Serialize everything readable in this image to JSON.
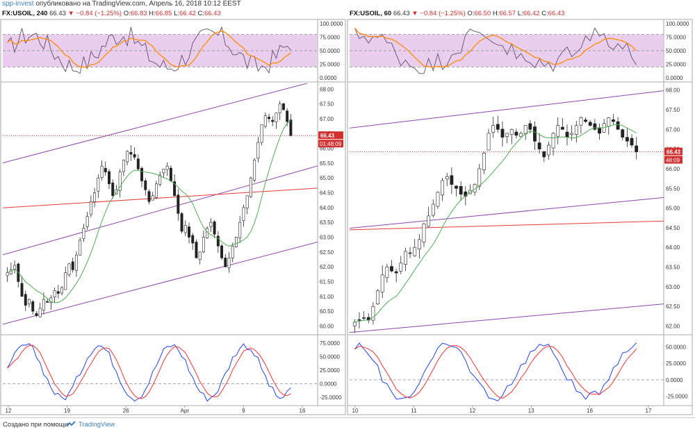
{
  "header": {
    "brand": "spp-invest",
    "published": "опубликовано на TradingView.com, Апрель 16, 2018 10:12 EEST"
  },
  "panels": [
    {
      "symbol": "FX:USOIL, 240",
      "last": "66.43",
      "change": "▼ −0.84 (−1.25%)",
      "o_label": "O:",
      "o": "66.83",
      "h_label": "H:",
      "h": "66.85",
      "l_label": "L:",
      "l": "66.42",
      "c_label": "C:",
      "c": "66.43",
      "price_badge": "66.43",
      "timer_badge": "01:48:09",
      "rsi_ticks": [
        "100.0000",
        "75.0000",
        "50.0000",
        "25.0000",
        "0.0000"
      ],
      "price_ticks": [
        "68.00",
        "67.50",
        "67.00",
        "66.50",
        "66.00",
        "65.50",
        "65.00",
        "64.50",
        "64.00",
        "63.50",
        "63.00",
        "62.50",
        "62.00",
        "61.50",
        "61.00",
        "60.50",
        "60.00"
      ],
      "stoch_ticks": [
        "75.0000",
        "50.0000",
        "25.0000",
        "0.0000",
        "-25.0000"
      ],
      "x_ticks": [
        "12",
        "19",
        "26",
        "Apr",
        "9",
        "16"
      ]
    },
    {
      "symbol": "FX:USOIL, 60",
      "last": "66.43",
      "change": "▼ −0.84 (−1.25%)",
      "o_label": "O:",
      "o": "66.50",
      "h_label": "H:",
      "h": "66.57",
      "l_label": "L:",
      "l": "66.42",
      "c_label": "C:",
      "c": "66.43",
      "price_badge": "66.43",
      "timer_badge": "48:09",
      "rsi_ticks": [
        "100.0000",
        "75.0000",
        "50.0000",
        "25.0000",
        "0.0000"
      ],
      "price_ticks": [
        "68.00",
        "67.50",
        "67.00",
        "66.50",
        "66.00",
        "65.50",
        "65.00",
        "64.50",
        "64.00",
        "63.50",
        "63.00",
        "62.50",
        "62.00"
      ],
      "stoch_ticks": [
        "50.0000",
        "25.0000",
        "0.0000",
        "-25.0000"
      ],
      "x_ticks": [
        "10",
        "11",
        "12",
        "13",
        "16",
        "17"
      ]
    }
  ],
  "colors": {
    "up": "#26a69a",
    "down": "#d32f2f",
    "channel": "#8e44ad",
    "redline": "#e53935",
    "ma": "#4caf50",
    "rsi": "#6d5b7b",
    "rsi_ma": "#ff8c00",
    "rsi_band": "#e1bee7",
    "stoch_k": "#1e40ff",
    "stoch_d": "#ff3030"
  },
  "chart_data": [
    {
      "type": "candlestick",
      "title": "FX:USOIL, 240",
      "ylim": [
        59.8,
        68.1
      ],
      "rsi_range": [
        0,
        100
      ],
      "stoch_range": [
        -35,
        80
      ],
      "close": [
        61.8,
        61.9,
        62.05,
        61.5,
        61.0,
        60.7,
        60.9,
        60.5,
        60.35,
        60.6,
        60.9,
        60.8,
        60.95,
        61.2,
        61.1,
        61.3,
        61.8,
        62.1,
        61.9,
        62.4,
        62.9,
        63.3,
        63.7,
        64.2,
        64.5,
        65.0,
        65.4,
        65.2,
        64.8,
        64.4,
        64.6,
        65.2,
        65.6,
        65.9,
        65.8,
        65.7,
        65.3,
        64.9,
        64.6,
        64.2,
        64.4,
        64.8,
        65.1,
        65.3,
        65.4,
        64.9,
        64.4,
        63.8,
        63.2,
        63.4,
        63.0,
        62.8,
        62.3,
        62.5,
        63.0,
        63.3,
        63.5,
        63.1,
        62.7,
        62.3,
        62.0,
        62.3,
        62.7,
        63.0,
        63.5,
        64.0,
        64.4,
        65.0,
        65.6,
        66.2,
        66.8,
        67.1,
        67.0,
        66.9,
        67.2,
        67.5,
        67.3,
        66.9,
        66.43
      ],
      "channels": [
        {
          "from": [
            0,
            60.1
          ],
          "to": [
            78,
            62.6
          ]
        },
        {
          "from": [
            0,
            62.45
          ],
          "to": [
            78,
            65.15
          ]
        },
        {
          "from": [
            0,
            65.55
          ],
          "to": [
            78,
            68.05
          ]
        }
      ],
      "support_line": {
        "from": [
          0,
          64.0
        ],
        "to": [
          78,
          64.6
        ]
      },
      "last_price": 66.43
    },
    {
      "type": "candlestick",
      "title": "FX:USOIL, 60",
      "ylim": [
        61.85,
        68.1
      ],
      "rsi_range": [
        0,
        100
      ],
      "stoch_range": [
        -35,
        60
      ],
      "close": [
        62.1,
        62.15,
        62.2,
        62.15,
        62.5,
        62.9,
        63.3,
        63.5,
        63.4,
        63.35,
        63.6,
        63.9,
        63.85,
        64.0,
        64.2,
        64.6,
        64.8,
        65.1,
        65.4,
        65.7,
        65.8,
        65.6,
        65.5,
        65.35,
        65.3,
        65.45,
        65.6,
        66.0,
        66.4,
        66.9,
        67.1,
        67.0,
        66.8,
        66.9,
        67.0,
        66.85,
        66.9,
        67.1,
        67.0,
        66.7,
        66.5,
        66.3,
        66.6,
        66.9,
        67.1,
        67.0,
        66.8,
        66.9,
        67.1,
        67.3,
        67.2,
        67.1,
        67.0,
        66.9,
        67.15,
        67.3,
        67.2,
        67.0,
        66.8,
        66.7,
        66.6,
        66.43
      ],
      "channels": [
        {
          "from": [
            0,
            61.85
          ],
          "to": [
            61,
            62.5
          ]
        },
        {
          "from": [
            0,
            64.5
          ],
          "to": [
            61,
            65.2
          ]
        },
        {
          "from": [
            0,
            67.05
          ],
          "to": [
            61,
            67.9
          ]
        }
      ],
      "support_line": {
        "from": [
          0,
          64.45
        ],
        "to": [
          61,
          64.65
        ]
      },
      "last_price": 66.43
    }
  ],
  "footer": {
    "made_with": "Создано при помощи",
    "tradingview": "TradingView"
  }
}
